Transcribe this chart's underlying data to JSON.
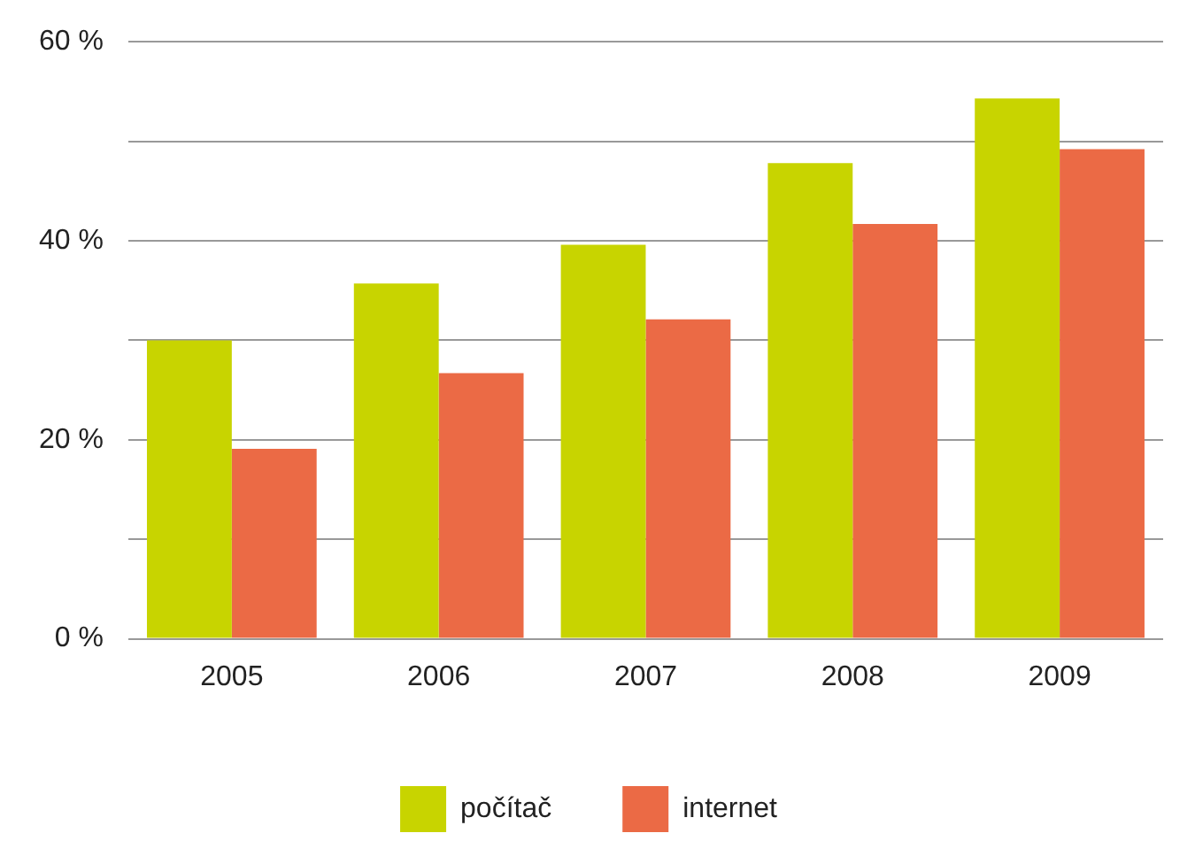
{
  "chart_data": {
    "type": "bar",
    "categories": [
      "2005",
      "2006",
      "2007",
      "2008",
      "2009"
    ],
    "series": [
      {
        "name": "počítač",
        "color": "#c8d400",
        "values": [
          30,
          35.7,
          39.6,
          47.8,
          54.3
        ]
      },
      {
        "name": "internet",
        "color": "#eb6a45",
        "values": [
          19.1,
          26.7,
          32.1,
          41.7,
          49.2
        ]
      }
    ],
    "ylim": [
      0,
      60
    ],
    "yticks": [
      {
        "value": 0,
        "label": "0 %"
      },
      {
        "value": 10,
        "label": null
      },
      {
        "value": 20,
        "label": "20 %"
      },
      {
        "value": 30,
        "label": null
      },
      {
        "value": 40,
        "label": "40 %"
      },
      {
        "value": 50,
        "label": null
      },
      {
        "value": 60,
        "label": "60 %"
      }
    ],
    "grid": "y",
    "legend": "bottom"
  }
}
